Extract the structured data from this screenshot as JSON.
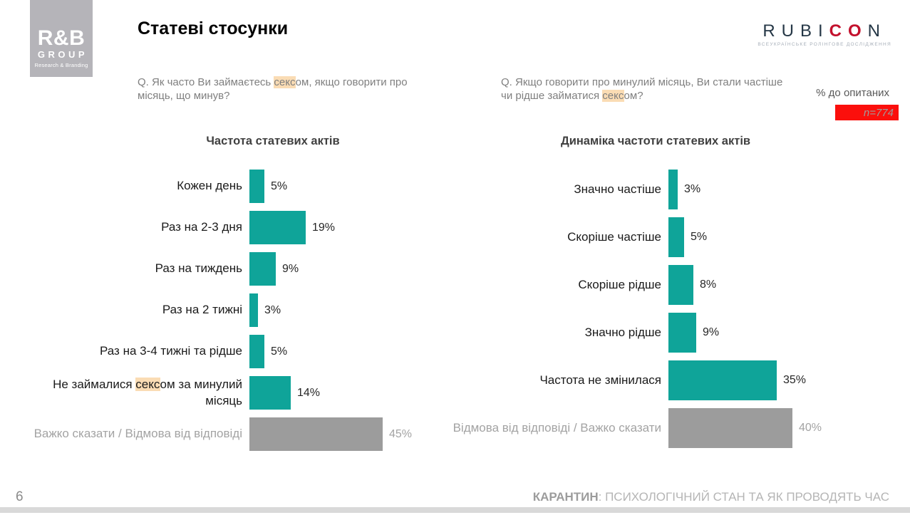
{
  "colors": {
    "teal": "#0fa499",
    "gray": "#9c9c9c",
    "highlight": "#fadcb4",
    "red_badge": "#fb0f0c",
    "rubicon_navy": "#253746",
    "rubicon_red": "#c3112d"
  },
  "highlight": {
    "word": "секс"
  },
  "header": {
    "rb_logo": {
      "name": "R&B",
      "group": "GROUP",
      "subtitle": "Research & Branding"
    },
    "title": "Статеві стосунки",
    "rubicon": {
      "part1": "RUBI",
      "part2": "CO",
      "part3": "N",
      "subtitle": "ВСЕУКРАЇНСЬКЕ РОЛІНГОВЕ ДОСЛІДЖЕННЯ"
    },
    "pct_label": "% до опитаних",
    "sample_label": "n=774"
  },
  "questions": {
    "left": {
      "pre": "Q. Як часто Ви займаєтесь ",
      "hl": "секс",
      "post": "ом, якщо говорити про місяць, що минув?"
    },
    "right": {
      "pre": "Q. Якщо говорити про минулий місяць, Ви стали частіше чи рідше займатися ",
      "hl": "секс",
      "post": "ом?"
    }
  },
  "chart_data": [
    {
      "type": "bar",
      "orientation": "horizontal",
      "title": "Частота статевих актів",
      "unit": "%",
      "categories": [
        "Кожен день",
        "Раз на 2-3 дня",
        "Раз на тиждень",
        "Раз на 2 тижні",
        "Раз на 3-4 тижні та рідше",
        "Не займалися сексом за минулий місяць",
        "Важко сказати / Відмова від відповіді"
      ],
      "values": [
        5,
        19,
        9,
        3,
        5,
        14,
        45
      ],
      "bar_colors": [
        "teal",
        "teal",
        "teal",
        "teal",
        "teal",
        "teal",
        "gray"
      ],
      "xlim": [
        0,
        50
      ],
      "value_labels": true,
      "grid": false,
      "legend": false
    },
    {
      "type": "bar",
      "orientation": "horizontal",
      "title": "Динаміка частоти статевих актів",
      "unit": "%",
      "categories": [
        "Значно частіше",
        "Скоріше частіше",
        "Скоріше рідше",
        "Значно рідше",
        "Частота не змінилася",
        "Відмова від відповіді / Важко сказати"
      ],
      "values": [
        3,
        5,
        8,
        9,
        35,
        40
      ],
      "bar_colors": [
        "teal",
        "teal",
        "teal",
        "teal",
        "teal",
        "gray"
      ],
      "xlim": [
        0,
        45
      ],
      "value_labels": true,
      "grid": false,
      "legend": false
    }
  ],
  "footer": {
    "page": "6",
    "title_bold": "КАРАНТИН",
    "title_rest": ": ПСИХОЛОГІЧНИЙ СТАН ТА ЯК ПРОВОДЯТЬ ЧАС"
  }
}
